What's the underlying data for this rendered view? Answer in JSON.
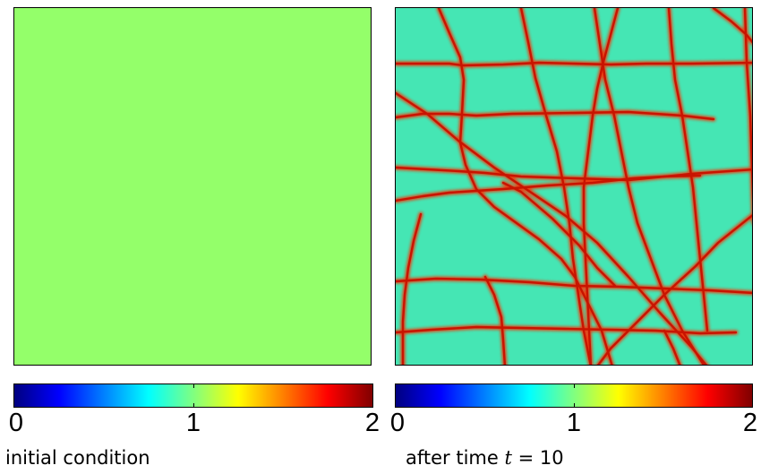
{
  "panels": {
    "left": {
      "caption": "initial condition",
      "field_value": 1,
      "field_color": "#94ff6a"
    },
    "right": {
      "caption_prefix": "after time",
      "caption_var": "t",
      "caption_rest": "= 10",
      "background_color": "#45e6b4",
      "crack_color": "#c81400",
      "crack_glow_color": "#ff2a00"
    }
  },
  "colorbar": {
    "colormap": "jet",
    "ticks": [
      "0",
      "1",
      "2"
    ],
    "range": [
      0,
      2
    ]
  }
}
